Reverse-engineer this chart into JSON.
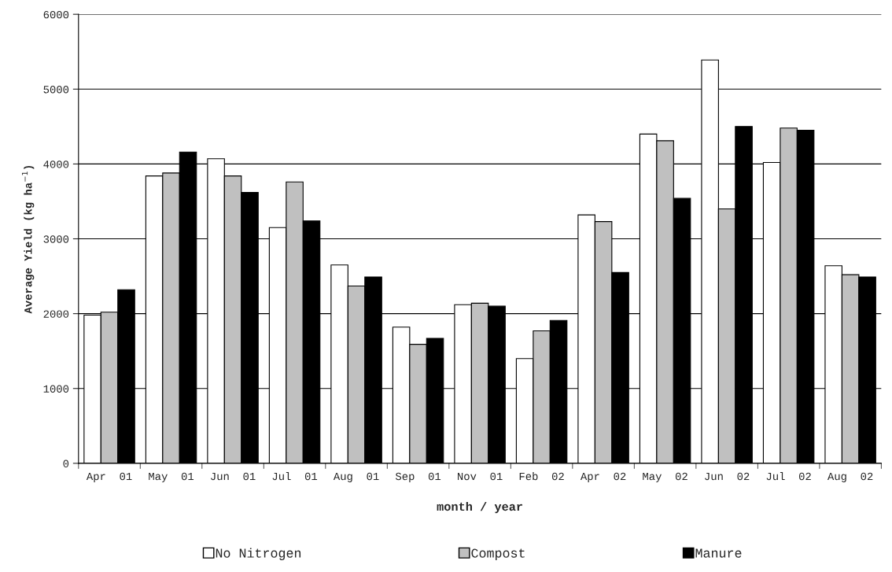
{
  "chart_data": {
    "type": "bar",
    "xlabel": "month / year",
    "ylabel": "Average Yield (kg ha$^{−1}$)",
    "categories": [
      "Apr  01",
      "May  01",
      "Jun  01",
      "Jul  01",
      "Aug  01",
      "Sep  01",
      "Nov  01",
      "Feb  02",
      "Apr  02",
      "May  02",
      "Jun  02",
      "Jul  02",
      "Aug  02"
    ],
    "series": [
      {
        "name": "No Nitrogen",
        "color": "#ffffff",
        "values": [
          1980,
          3840,
          4070,
          3150,
          2650,
          1820,
          2120,
          1400,
          3320,
          4400,
          5390,
          4020,
          2640
        ]
      },
      {
        "name": "Compost",
        "color": "#c0c0c0",
        "values": [
          2020,
          3880,
          3840,
          3760,
          2370,
          1590,
          2140,
          1770,
          3230,
          4310,
          3400,
          4480,
          2520
        ]
      },
      {
        "name": "Manure",
        "color": "#000000",
        "values": [
          2320,
          4160,
          3620,
          3240,
          2490,
          1670,
          2100,
          1910,
          2550,
          3540,
          4500,
          4450,
          2490
        ]
      }
    ],
    "ylim": [
      0,
      6000
    ],
    "yticks": [
      0,
      1000,
      2000,
      3000,
      4000,
      5000,
      6000
    ],
    "grid": "y",
    "legend": "bottom"
  }
}
